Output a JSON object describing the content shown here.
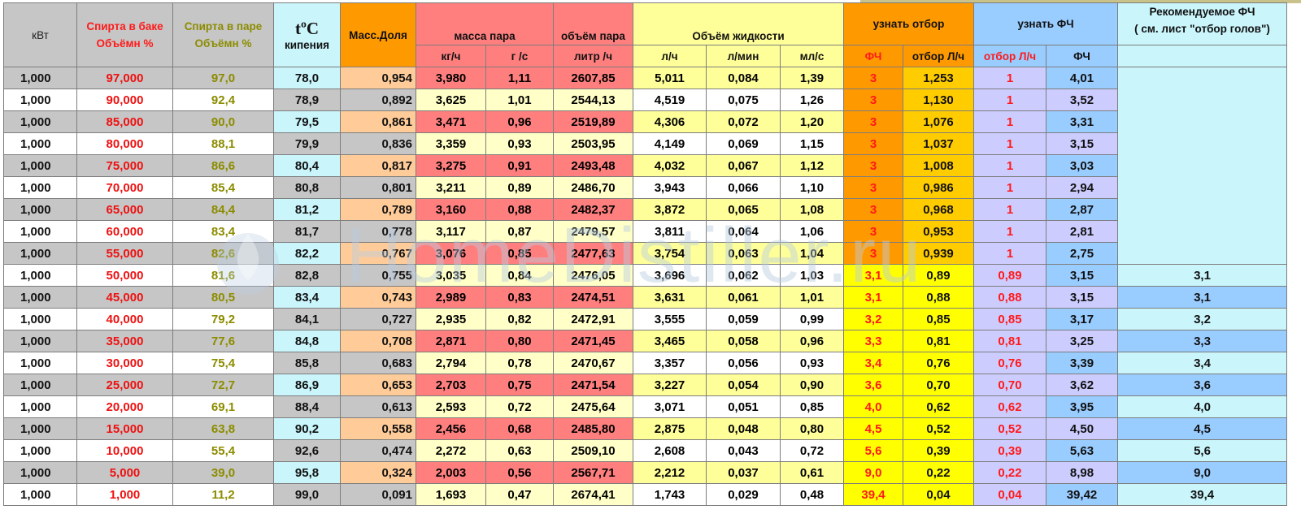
{
  "header": {
    "kw": "кВт",
    "bak_l1": "Спирта в баке",
    "bak_l2": "Объёмн %",
    "par_l1": "Спирта в паре",
    "par_l2": "Объёмн %",
    "temp_l1": "tºC",
    "temp_l2": "кипения",
    "mass": "Масс.Доля",
    "massa_para": "масса пара",
    "massa_kgh": "кг/ч",
    "massa_gs": "г /с",
    "obem_para": "объём пара",
    "obem_para_unit": "литр /ч",
    "obem_zhid": "Объём жидкости",
    "zh_lh": "л/ч",
    "zh_lmin": "л/мин",
    "zh_mls": "мл/с",
    "uznat_otbor": "узнать отбор",
    "otb_fc": "ФЧ",
    "otb_lh": "отбор Л/ч",
    "uznat_fc": "узнать ФЧ",
    "fc_otb": "отбор Л/ч",
    "fc_fc": "ФЧ",
    "rec_l1": "Рекомендуемое ФЧ",
    "rec_l2": "( см. лист \"отбор голов\")"
  },
  "watermark": "HomeDistiller.ru",
  "rows": [
    {
      "kw": "1,000",
      "bak": "97,000",
      "par": "97,0",
      "t": "78,0",
      "m": "0,954",
      "kgh": "3,980",
      "gs": "1,11",
      "vp": "2607,85",
      "lh": "5,011",
      "lmin": "0,084",
      "mls": "1,39",
      "fc": "3",
      "otb": "1,253",
      "otb2": "1",
      "fc2": "4,01",
      "rec": ""
    },
    {
      "kw": "1,000",
      "bak": "90,000",
      "par": "92,4",
      "t": "78,9",
      "m": "0,892",
      "kgh": "3,625",
      "gs": "1,01",
      "vp": "2544,13",
      "lh": "4,519",
      "lmin": "0,075",
      "mls": "1,26",
      "fc": "3",
      "otb": "1,130",
      "otb2": "1",
      "fc2": "3,52",
      "rec": ""
    },
    {
      "kw": "1,000",
      "bak": "85,000",
      "par": "90,0",
      "t": "79,5",
      "m": "0,861",
      "kgh": "3,471",
      "gs": "0,96",
      "vp": "2519,89",
      "lh": "4,306",
      "lmin": "0,072",
      "mls": "1,20",
      "fc": "3",
      "otb": "1,076",
      "otb2": "1",
      "fc2": "3,31",
      "rec": ""
    },
    {
      "kw": "1,000",
      "bak": "80,000",
      "par": "88,1",
      "t": "79,9",
      "m": "0,836",
      "kgh": "3,359",
      "gs": "0,93",
      "vp": "2503,95",
      "lh": "4,149",
      "lmin": "0,069",
      "mls": "1,15",
      "fc": "3",
      "otb": "1,037",
      "otb2": "1",
      "fc2": "3,15",
      "rec": ""
    },
    {
      "kw": "1,000",
      "bak": "75,000",
      "par": "86,6",
      "t": "80,4",
      "m": "0,817",
      "kgh": "3,275",
      "gs": "0,91",
      "vp": "2493,48",
      "lh": "4,032",
      "lmin": "0,067",
      "mls": "1,12",
      "fc": "3",
      "otb": "1,008",
      "otb2": "1",
      "fc2": "3,03",
      "rec": ""
    },
    {
      "kw": "1,000",
      "bak": "70,000",
      "par": "85,4",
      "t": "80,8",
      "m": "0,801",
      "kgh": "3,211",
      "gs": "0,89",
      "vp": "2486,70",
      "lh": "3,943",
      "lmin": "0,066",
      "mls": "1,10",
      "fc": "3",
      "otb": "0,986",
      "otb2": "1",
      "fc2": "2,94",
      "rec": ""
    },
    {
      "kw": "1,000",
      "bak": "65,000",
      "par": "84,4",
      "t": "81,2",
      "m": "0,789",
      "kgh": "3,160",
      "gs": "0,88",
      "vp": "2482,37",
      "lh": "3,872",
      "lmin": "0,065",
      "mls": "1,08",
      "fc": "3",
      "otb": "0,968",
      "otb2": "1",
      "fc2": "2,87",
      "rec": ""
    },
    {
      "kw": "1,000",
      "bak": "60,000",
      "par": "83,4",
      "t": "81,7",
      "m": "0,778",
      "kgh": "3,117",
      "gs": "0,87",
      "vp": "2479,57",
      "lh": "3,811",
      "lmin": "0,064",
      "mls": "1,06",
      "fc": "3",
      "otb": "0,953",
      "otb2": "1",
      "fc2": "2,81",
      "rec": ""
    },
    {
      "kw": "1,000",
      "bak": "55,000",
      "par": "82,6",
      "t": "82,2",
      "m": "0,767",
      "kgh": "3,076",
      "gs": "0,85",
      "vp": "2477,63",
      "lh": "3,754",
      "lmin": "0,063",
      "mls": "1,04",
      "fc": "3",
      "otb": "0,939",
      "otb2": "1",
      "fc2": "2,75",
      "rec": ""
    },
    {
      "kw": "1,000",
      "bak": "50,000",
      "par": "81,6",
      "t": "82,8",
      "m": "0,755",
      "kgh": "3,035",
      "gs": "0,84",
      "vp": "2476,05",
      "lh": "3,696",
      "lmin": "0,062",
      "mls": "1,03",
      "fc": "3,1",
      "otb": "0,89",
      "otb2": "0,89",
      "fc2": "3,15",
      "rec": "3,1"
    },
    {
      "kw": "1,000",
      "bak": "45,000",
      "par": "80,5",
      "t": "83,4",
      "m": "0,743",
      "kgh": "2,989",
      "gs": "0,83",
      "vp": "2474,51",
      "lh": "3,631",
      "lmin": "0,061",
      "mls": "1,01",
      "fc": "3,1",
      "otb": "0,88",
      "otb2": "0,88",
      "fc2": "3,15",
      "rec": "3,1"
    },
    {
      "kw": "1,000",
      "bak": "40,000",
      "par": "79,2",
      "t": "84,1",
      "m": "0,727",
      "kgh": "2,935",
      "gs": "0,82",
      "vp": "2472,91",
      "lh": "3,555",
      "lmin": "0,059",
      "mls": "0,99",
      "fc": "3,2",
      "otb": "0,85",
      "otb2": "0,85",
      "fc2": "3,17",
      "rec": "3,2"
    },
    {
      "kw": "1,000",
      "bak": "35,000",
      "par": "77,6",
      "t": "84,8",
      "m": "0,708",
      "kgh": "2,871",
      "gs": "0,80",
      "vp": "2471,45",
      "lh": "3,465",
      "lmin": "0,058",
      "mls": "0,96",
      "fc": "3,3",
      "otb": "0,81",
      "otb2": "0,81",
      "fc2": "3,25",
      "rec": "3,3"
    },
    {
      "kw": "1,000",
      "bak": "30,000",
      "par": "75,4",
      "t": "85,8",
      "m": "0,683",
      "kgh": "2,794",
      "gs": "0,78",
      "vp": "2470,67",
      "lh": "3,357",
      "lmin": "0,056",
      "mls": "0,93",
      "fc": "3,4",
      "otb": "0,76",
      "otb2": "0,76",
      "fc2": "3,39",
      "rec": "3,4"
    },
    {
      "kw": "1,000",
      "bak": "25,000",
      "par": "72,7",
      "t": "86,9",
      "m": "0,653",
      "kgh": "2,703",
      "gs": "0,75",
      "vp": "2471,54",
      "lh": "3,227",
      "lmin": "0,054",
      "mls": "0,90",
      "fc": "3,6",
      "otb": "0,70",
      "otb2": "0,70",
      "fc2": "3,62",
      "rec": "3,6"
    },
    {
      "kw": "1,000",
      "bak": "20,000",
      "par": "69,1",
      "t": "88,4",
      "m": "0,613",
      "kgh": "2,593",
      "gs": "0,72",
      "vp": "2475,64",
      "lh": "3,071",
      "lmin": "0,051",
      "mls": "0,85",
      "fc": "4,0",
      "otb": "0,62",
      "otb2": "0,62",
      "fc2": "3,95",
      "rec": "4,0"
    },
    {
      "kw": "1,000",
      "bak": "15,000",
      "par": "63,8",
      "t": "90,2",
      "m": "0,558",
      "kgh": "2,456",
      "gs": "0,68",
      "vp": "2485,80",
      "lh": "2,875",
      "lmin": "0,048",
      "mls": "0,80",
      "fc": "4,5",
      "otb": "0,52",
      "otb2": "0,52",
      "fc2": "4,50",
      "rec": "4,5"
    },
    {
      "kw": "1,000",
      "bak": "10,000",
      "par": "55,4",
      "t": "92,6",
      "m": "0,474",
      "kgh": "2,272",
      "gs": "0,63",
      "vp": "2509,10",
      "lh": "2,608",
      "lmin": "0,043",
      "mls": "0,72",
      "fc": "5,6",
      "otb": "0,39",
      "otb2": "0,39",
      "fc2": "5,63",
      "rec": "5,6"
    },
    {
      "kw": "1,000",
      "bak": "5,000",
      "par": "39,0",
      "t": "95,8",
      "m": "0,324",
      "kgh": "2,003",
      "gs": "0,56",
      "vp": "2567,71",
      "lh": "2,212",
      "lmin": "0,037",
      "mls": "0,61",
      "fc": "9,0",
      "otb": "0,22",
      "otb2": "0,22",
      "fc2": "8,98",
      "rec": "9,0"
    },
    {
      "kw": "1,000",
      "bak": "1,000",
      "par": "11,2",
      "t": "99,0",
      "m": "0,091",
      "kgh": "1,693",
      "gs": "0,47",
      "vp": "2674,41",
      "lh": "1,743",
      "lmin": "0,029",
      "mls": "0,48",
      "fc": "39,4",
      "otb": "0,04",
      "otb2": "0,04",
      "fc2": "39,42",
      "rec": "39,4"
    }
  ]
}
